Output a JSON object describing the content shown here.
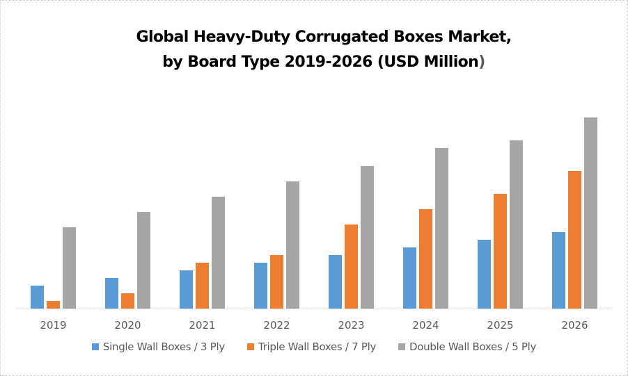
{
  "chart_data": {
    "type": "bar",
    "title_line1": "Global Heavy-Duty Corrugated Boxes Market,",
    "title_line2": "by Board Type 2019-2026 (USD Million",
    "title_close": ")",
    "xlabel": "",
    "ylabel": "",
    "ylim": [
      0,
      300
    ],
    "grid": false,
    "legend_position": "bottom",
    "categories": [
      "2019",
      "2020",
      "2021",
      "2022",
      "2023",
      "2024",
      "2025",
      "2026"
    ],
    "series": [
      {
        "name": "Single Wall Boxes / 3 Ply",
        "color": "#5b9bd5",
        "values": [
          33,
          44,
          55,
          66,
          77,
          88,
          99,
          110
        ]
      },
      {
        "name": "Triple Wall Boxes / 7 Ply",
        "color": "#ed7d31",
        "values": [
          11,
          22,
          66,
          77,
          121,
          143,
          165,
          198
        ]
      },
      {
        "name": "Double Wall Boxes / 5 Ply",
        "color": "#a5a5a5",
        "values": [
          117,
          139,
          161,
          183,
          205,
          231,
          242,
          275
        ]
      }
    ],
    "note": "No value axis shown; values are estimated relative magnitudes"
  }
}
